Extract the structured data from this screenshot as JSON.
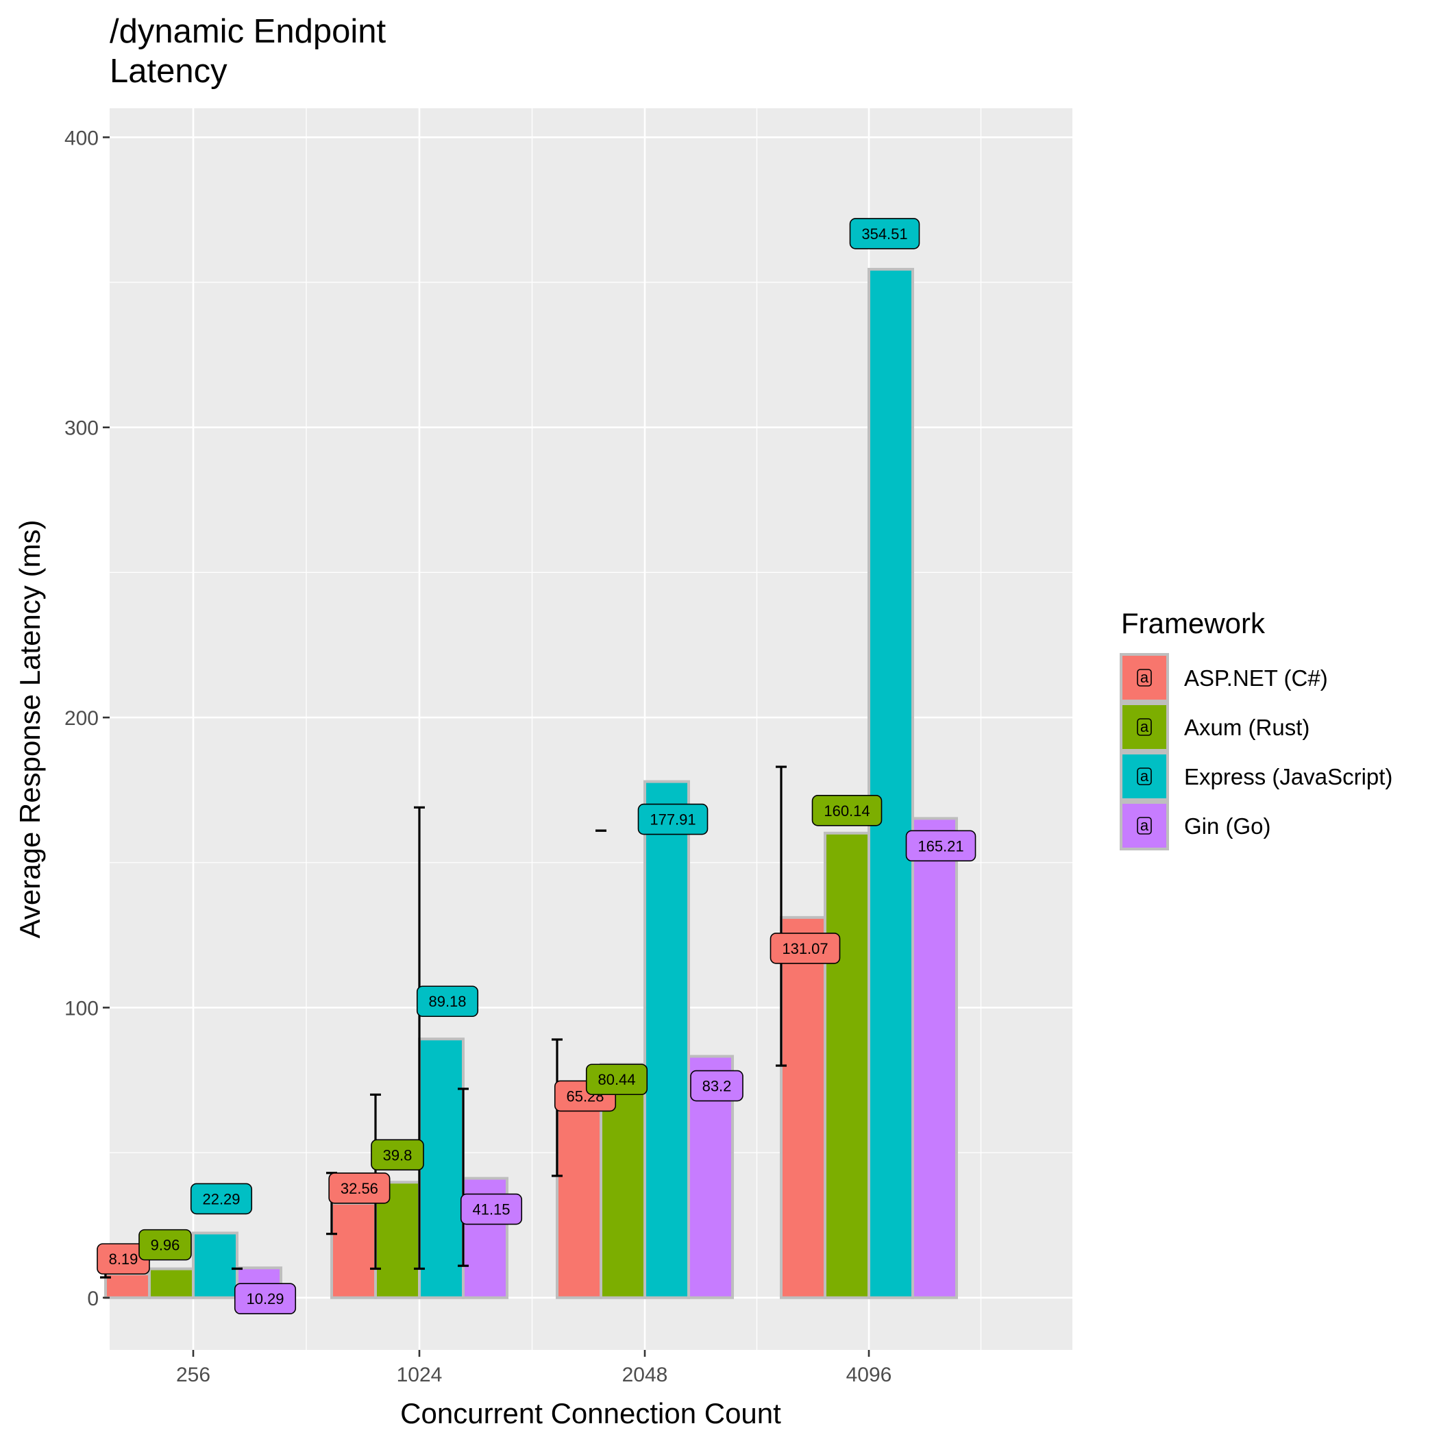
{
  "chart_data": {
    "type": "bar",
    "title": "/dynamic Endpoint\nLatency",
    "xlabel": "Concurrent Connection Count",
    "ylabel": "Average Response Latency (ms)",
    "categories": [
      "256",
      "1024",
      "2048",
      "4096"
    ],
    "ylim": [
      -18,
      410
    ],
    "yticks": [
      0,
      100,
      200,
      300,
      400
    ],
    "grid": true,
    "legend": {
      "title": "Framework",
      "position": "right"
    },
    "series": [
      {
        "name": "ASP.NET (C#)",
        "color": "#F8766D",
        "values": [
          8.19,
          32.56,
          65.28,
          131.07
        ],
        "labels": [
          "8.19",
          "32.56",
          "65.28",
          "131.07"
        ],
        "error_low": [
          7,
          22,
          42,
          80
        ],
        "error_high": [
          10,
          43,
          89,
          183
        ]
      },
      {
        "name": "Axum (Rust)",
        "color": "#7CAE00",
        "values": [
          9.96,
          39.8,
          80.44,
          160.14
        ],
        "labels": [
          "9.96",
          "39.8",
          "80.44",
          "160.14"
        ],
        "error_low": [
          null,
          10,
          161,
          null
        ],
        "error_high": [
          null,
          70,
          161,
          null
        ]
      },
      {
        "name": "Express (JavaScript)",
        "color": "#00BFC4",
        "values": [
          22.29,
          89.18,
          177.91,
          354.51
        ],
        "labels": [
          "22.29",
          "89.18",
          "177.91",
          "354.51"
        ],
        "error_low": [
          null,
          10,
          null,
          null
        ],
        "error_high": [
          null,
          169,
          null,
          null
        ]
      },
      {
        "name": "Gin (Go)",
        "color": "#C77CFF",
        "values": [
          10.29,
          41.15,
          83.2,
          165.21
        ],
        "labels": [
          "10.29",
          "41.15",
          "83.2",
          "165.21"
        ],
        "error_low": [
          10,
          11,
          168,
          null
        ],
        "error_high": [
          10,
          72,
          168,
          null
        ]
      }
    ]
  }
}
